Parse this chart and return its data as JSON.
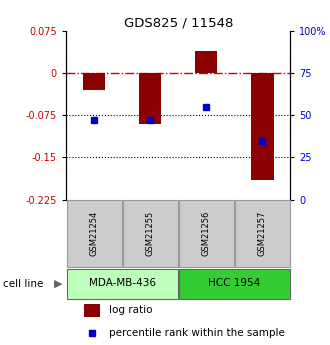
{
  "title": "GDS825 / 11548",
  "samples": [
    "GSM21254",
    "GSM21255",
    "GSM21256",
    "GSM21257"
  ],
  "log_ratio": [
    -0.03,
    -0.09,
    0.04,
    -0.19
  ],
  "percentile_rank": [
    47,
    47,
    55,
    35
  ],
  "cell_lines": [
    {
      "label": "MDA-MB-436",
      "samples": [
        0,
        1
      ],
      "color": "#bbffbb"
    },
    {
      "label": "HCC 1954",
      "samples": [
        2,
        3
      ],
      "color": "#33cc33"
    }
  ],
  "ylim_left": [
    -0.225,
    0.075
  ],
  "ylim_right": [
    0,
    100
  ],
  "yticks_left": [
    0.075,
    0,
    -0.075,
    -0.15,
    -0.225
  ],
  "yticks_right": [
    100,
    75,
    50,
    25,
    0
  ],
  "bar_color": "#8b0000",
  "dot_color": "#0000cc",
  "hline_0_color": "#cc0000",
  "hline_dot_color": "#000000",
  "background_color": "#ffffff",
  "cell_line_label": "cell line",
  "legend_log_ratio": "log ratio",
  "legend_percentile": "percentile rank within the sample"
}
